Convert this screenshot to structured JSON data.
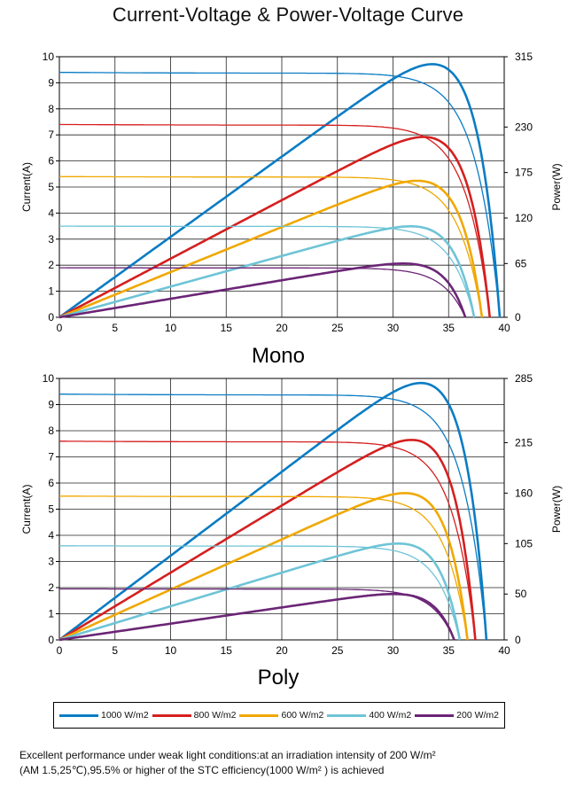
{
  "title": "Current-Voltage & Power-Voltage Curve",
  "legend": [
    {
      "label": "1000 W/m2",
      "color": "#0a7cc4"
    },
    {
      "label": "800 W/m2",
      "color": "#d51f1f"
    },
    {
      "label": "600 W/m2",
      "color": "#f0a800"
    },
    {
      "label": "400 W/m2",
      "color": "#6ec4d6"
    },
    {
      "label": "200 W/m2",
      "color": "#6b2576"
    }
  ],
  "footnote": {
    "line1": "Excellent performance under weak light conditions:at an irradiation intensity of 200 W/m²",
    "line2": "(AM 1.5,25℃),95.5% or higher of the STC efficiency(1000 W/m² ) is achieved"
  },
  "chart_data": [
    {
      "type": "line",
      "title": "Mono",
      "xlabel": "",
      "ylabel": "Current(A)",
      "y2label": "Power(W)",
      "xlim": [
        0,
        40
      ],
      "ylim": [
        0,
        10
      ],
      "y2lim": [
        0,
        315
      ],
      "xticks": [
        "0",
        "5",
        "10",
        "15",
        "20",
        "25",
        "30",
        "35",
        "40"
      ],
      "yticks": [
        "0",
        "1",
        "2",
        "3",
        "4",
        "5",
        "6",
        "7",
        "8",
        "9",
        "10"
      ],
      "y2ticks": [
        "0",
        "65",
        "120",
        "175",
        "230",
        "315"
      ],
      "y2tick_values": [
        0,
        65,
        120,
        175,
        230,
        315
      ],
      "grid": true,
      "series": [
        {
          "name": "1000 W/m2",
          "color": "#0a7cc4",
          "isc": 9.4,
          "voc": 39.6,
          "vmp": 32.4,
          "pmax": 306
        },
        {
          "name": "800 W/m2",
          "color": "#d51f1f",
          "isc": 7.4,
          "voc": 38.7,
          "vmp": 31.4,
          "pmax": 218
        },
        {
          "name": "600 W/m2",
          "color": "#f0a800",
          "isc": 5.4,
          "voc": 38.0,
          "vmp": 31.3,
          "pmax": 165
        },
        {
          "name": "400 W/m2",
          "color": "#6ec4d6",
          "isc": 3.5,
          "voc": 37.3,
          "vmp": 31.4,
          "pmax": 110
        },
        {
          "name": "200 W/m2",
          "color": "#6b2576",
          "isc": 1.9,
          "voc": 36.5,
          "vmp": 30.0,
          "pmax": 65
        }
      ]
    },
    {
      "type": "line",
      "title": "Poly",
      "xlabel": "",
      "ylabel": "Current(A)",
      "y2label": "Power(W)",
      "xlim": [
        0,
        40
      ],
      "ylim": [
        0,
        10
      ],
      "y2lim": [
        0,
        285
      ],
      "xticks": [
        "0",
        "5",
        "10",
        "15",
        "20",
        "25",
        "30",
        "35",
        "40"
      ],
      "yticks": [
        "0",
        "1",
        "2",
        "3",
        "4",
        "5",
        "6",
        "7",
        "8",
        "9",
        "10"
      ],
      "y2ticks": [
        "0",
        "50",
        "105",
        "160",
        "215",
        "285"
      ],
      "y2tick_values": [
        0,
        50,
        105,
        160,
        215,
        285
      ],
      "grid": true,
      "series": [
        {
          "name": "1000 W/m2",
          "color": "#0a7cc4",
          "isc": 9.4,
          "voc": 38.4,
          "vmp": 31.3,
          "pmax": 280
        },
        {
          "name": "800 W/m2",
          "color": "#d51f1f",
          "isc": 7.6,
          "voc": 37.4,
          "vmp": 30.4,
          "pmax": 218
        },
        {
          "name": "600 W/m2",
          "color": "#f0a800",
          "isc": 5.5,
          "voc": 36.7,
          "vmp": 30.3,
          "pmax": 160
        },
        {
          "name": "400 W/m2",
          "color": "#6ec4d6",
          "isc": 3.6,
          "voc": 36.0,
          "vmp": 30.3,
          "pmax": 105
        },
        {
          "name": "200 W/m2",
          "color": "#6b2576",
          "isc": 1.95,
          "voc": 35.5,
          "vmp": 30.0,
          "pmax": 50
        }
      ]
    }
  ]
}
